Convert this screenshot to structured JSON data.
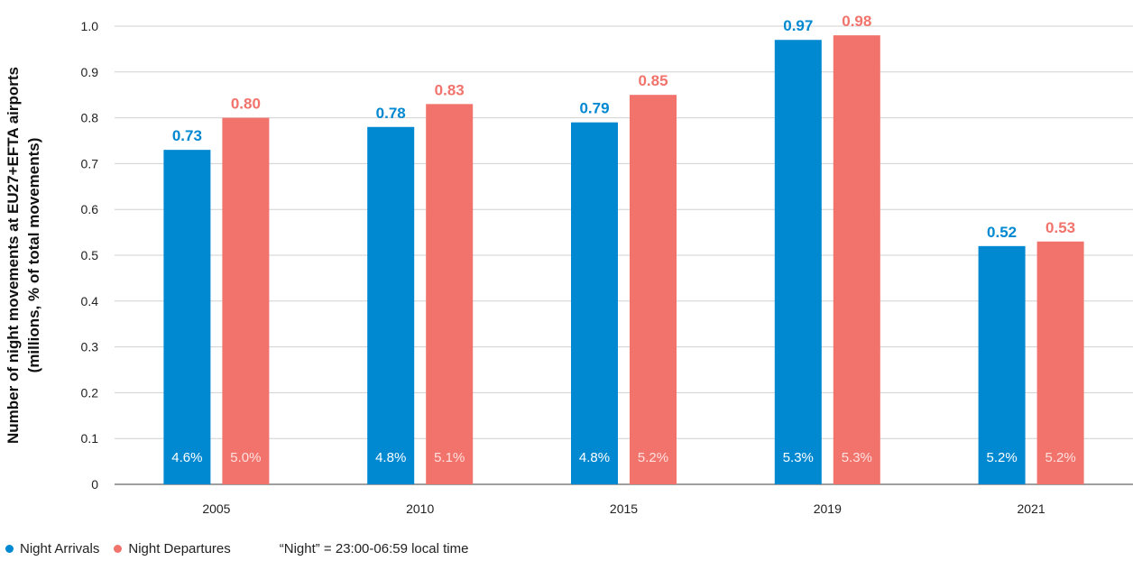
{
  "chart_data": {
    "type": "bar",
    "ylabel_line1": "Number of night movements at EU27+EFTA airports",
    "ylabel_line2": "(millions, % of total movements)",
    "categories": [
      "2005",
      "2010",
      "2015",
      "2019",
      "2021"
    ],
    "series": [
      {
        "name": "Night Arrivals",
        "color": "#0088d1",
        "values": [
          0.73,
          0.78,
          0.79,
          0.97,
          0.52
        ],
        "labels": [
          "0.73",
          "0.78",
          "0.79",
          "0.97",
          "0.52"
        ],
        "share_labels": [
          "4.6%",
          "4.8%",
          "4.8%",
          "5.3%",
          "5.2%"
        ]
      },
      {
        "name": "Night Departures",
        "color": "#f1736c",
        "values": [
          0.8,
          0.83,
          0.85,
          0.98,
          0.53
        ],
        "labels": [
          "0.80",
          "0.83",
          "0.85",
          "0.98",
          "0.53"
        ],
        "share_labels": [
          "5.0%",
          "5.1%",
          "5.2%",
          "5.3%",
          "5.2%"
        ]
      }
    ],
    "ylim": [
      0,
      1.0
    ],
    "yticks": [
      "0",
      "0.1",
      "0.2",
      "0.3",
      "0.4",
      "0.5",
      "0.6",
      "0.7",
      "0.8",
      "0.9",
      "1.0"
    ],
    "grid": true,
    "legend_position": "bottom-left",
    "note": "“Night” = 23:00-06:59 local time"
  }
}
